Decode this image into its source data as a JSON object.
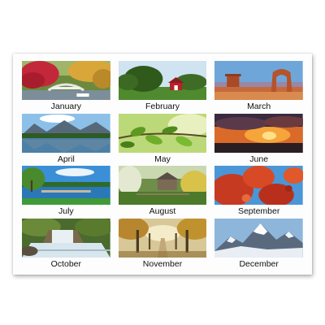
{
  "months": [
    {
      "label": "January",
      "scene": "garden-bridge-photo"
    },
    {
      "label": "February",
      "scene": "red-barn-photo"
    },
    {
      "label": "March",
      "scene": "desert-arch-photo"
    },
    {
      "label": "April",
      "scene": "mountain-lake-photo"
    },
    {
      "label": "May",
      "scene": "leaf-branch-photo"
    },
    {
      "label": "June",
      "scene": "sunset-clouds-photo"
    },
    {
      "label": "July",
      "scene": "lake-dock-photo"
    },
    {
      "label": "August",
      "scene": "cabin-meadow-photo"
    },
    {
      "label": "September",
      "scene": "autumn-leaves-photo"
    },
    {
      "label": "October",
      "scene": "waterfall-photo"
    },
    {
      "label": "November",
      "scene": "tree-path-photo"
    },
    {
      "label": "December",
      "scene": "snow-mountain-photo"
    }
  ]
}
